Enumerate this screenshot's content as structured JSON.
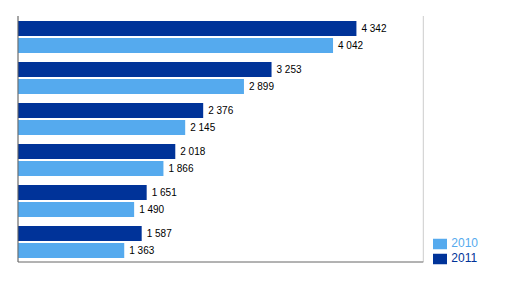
{
  "chart_data": {
    "type": "bar",
    "orientation": "horizontal",
    "categories": [
      null,
      null,
      null,
      null,
      null,
      null
    ],
    "series": [
      {
        "name": "2011",
        "color": "#003399",
        "values": [
          4342,
          3253,
          2376,
          2018,
          1651,
          1587
        ],
        "value_labels": [
          "4 342",
          "3 253",
          "2 376",
          "2 018",
          "1 651",
          "1 587"
        ]
      },
      {
        "name": "2010",
        "color": "#55AAEE",
        "values": [
          4042,
          2899,
          2145,
          1866,
          1490,
          1363
        ],
        "value_labels": [
          "4 042",
          "2 899",
          "2 145",
          "1 866",
          "1 490",
          "1 363"
        ]
      }
    ],
    "xlim": [
      0,
      5200
    ],
    "xticks": [
      1000,
      2000,
      3000,
      4000,
      5000
    ],
    "grid": true,
    "tick_labels": false,
    "data_labels": true,
    "legend": "lower right"
  }
}
